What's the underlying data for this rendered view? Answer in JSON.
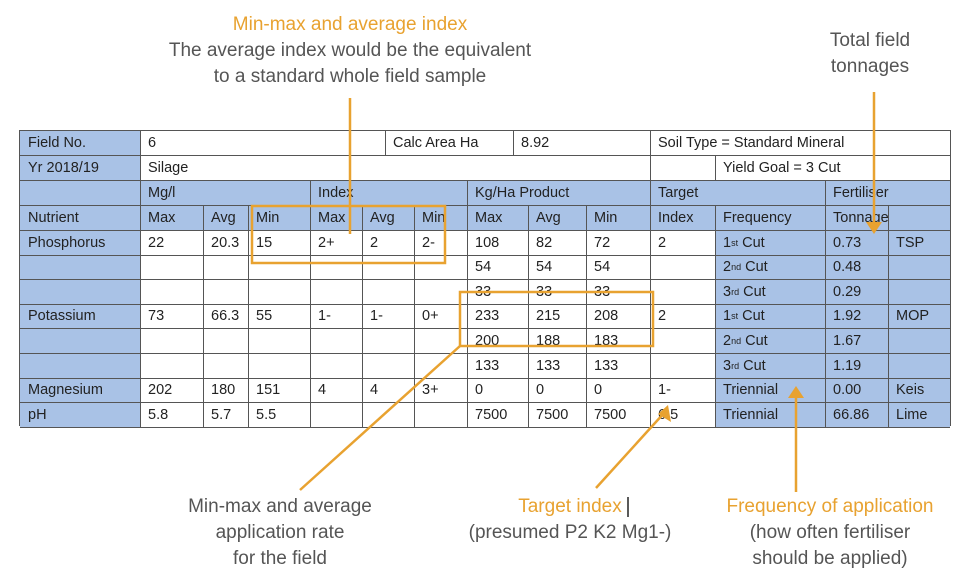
{
  "annotations": {
    "minmax_index": {
      "title": "Min-max and average index",
      "line1": "The average index would be the equivalent",
      "line2": "to a standard whole field sample"
    },
    "total_tonnages": {
      "line1": "Total field",
      "line2": "tonnages"
    },
    "app_rate": {
      "line1": "Min-max and average",
      "line2": "application rate",
      "line3": "for the field"
    },
    "target_index": {
      "title": "Target index",
      "sub": "(presumed P2 K2 Mg1-)"
    },
    "frequency": {
      "title": "Frequency of application",
      "line1": "(how often fertiliser",
      "line2": "should be applied)"
    }
  },
  "table": {
    "field_no_label": "Field No.",
    "field_no": "6",
    "calc_area_label": "Calc Area Ha",
    "calc_area": "8.92",
    "soil_type": "Soil Type = Standard Mineral",
    "year": "Yr 2018/19",
    "crop": "Silage",
    "yield_goal": "Yield Goal = 3 Cut",
    "groups": {
      "mgl": "Mg/l",
      "index": "Index",
      "kgha": "Kg/Ha Product",
      "target": "Target",
      "fertiliser": "Fertiliser"
    },
    "headers": [
      "Nutrient",
      "Max",
      "Avg",
      "Min",
      "Max",
      "Avg",
      "Min",
      "Max",
      "Avg",
      "Min",
      "Index",
      "Frequency",
      "Tonnages",
      ""
    ],
    "rows": [
      [
        "Phosphorus",
        "22",
        "20.3",
        "15",
        "2+",
        "2",
        "2-",
        "108",
        "82",
        "72",
        "2",
        "1|st|Cut",
        "0.73",
        "TSP"
      ],
      [
        "",
        "",
        "",
        "",
        "",
        "",
        "",
        "54",
        "54",
        "54",
        "",
        "2|nd|Cut",
        "0.48",
        ""
      ],
      [
        "",
        "",
        "",
        "",
        "",
        "",
        "",
        "33",
        "33",
        "33",
        "",
        "3|rd|Cut",
        "0.29",
        ""
      ],
      [
        "Potassium",
        "73",
        "66.3",
        "55",
        "1-",
        "1-",
        "0+",
        "233",
        "215",
        "208",
        "2",
        "1|st|Cut",
        "1.92",
        "MOP"
      ],
      [
        "",
        "",
        "",
        "",
        "",
        "",
        "",
        "200",
        "188",
        "183",
        "",
        "2|nd|Cut",
        "1.67",
        ""
      ],
      [
        "",
        "",
        "",
        "",
        "",
        "",
        "",
        "133",
        "133",
        "133",
        "",
        "3|rd|Cut",
        "1.19",
        ""
      ],
      [
        "Magnesium",
        "202",
        "180",
        "151",
        "4",
        "4",
        "3+",
        "0",
        "0",
        "0",
        "1-",
        "Triennial",
        "0.00",
        "Keis"
      ],
      [
        "pH",
        "5.8",
        "5.7",
        "5.5",
        "",
        "",
        "",
        "7500",
        "7500",
        "7500",
        "6.5",
        "Triennial",
        "66.86",
        "Lime"
      ]
    ]
  }
}
